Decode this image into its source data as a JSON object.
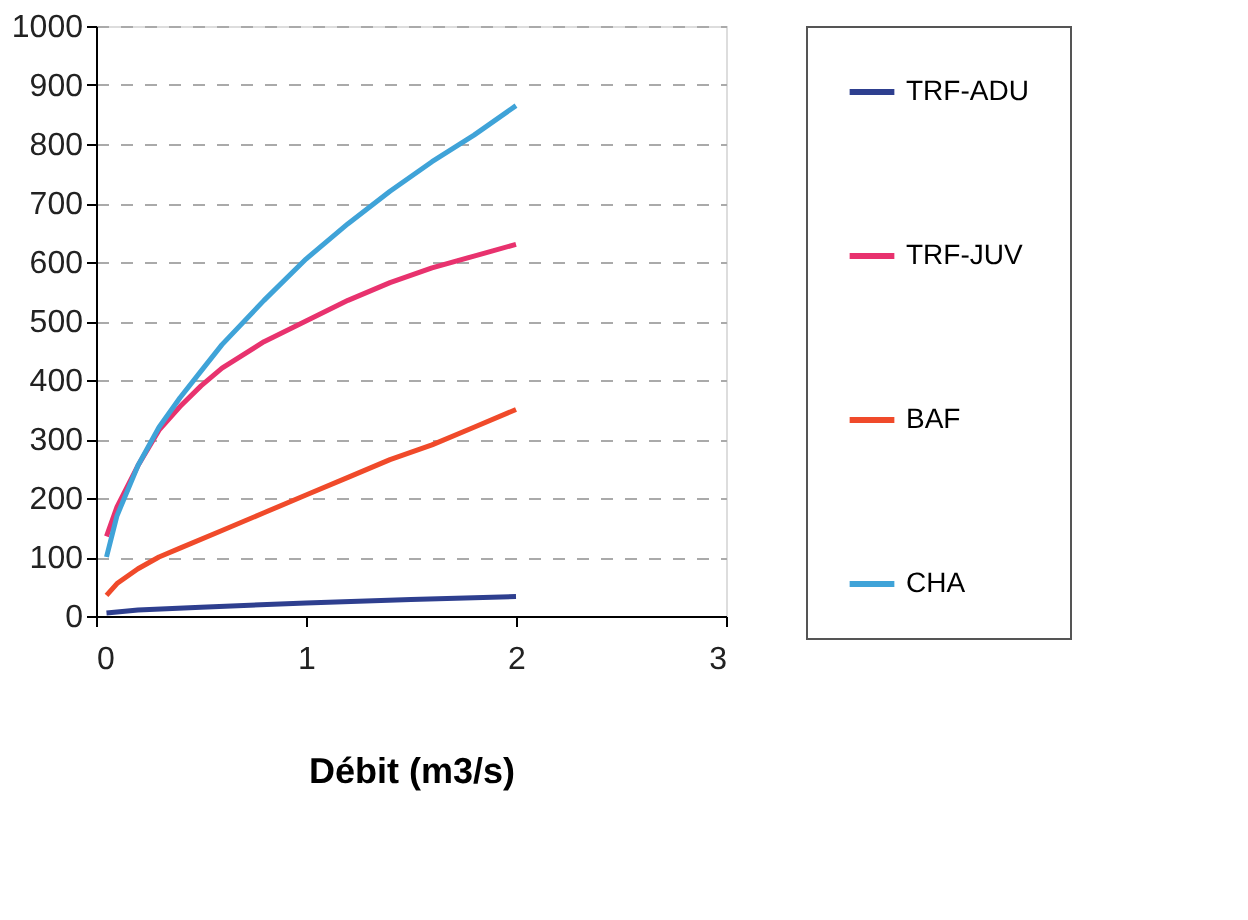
{
  "chart_data": {
    "type": "line",
    "xlabel": "Débit (m3/s)",
    "xlim": [
      0,
      3
    ],
    "xticks": [
      0,
      1,
      2,
      3
    ],
    "ylim": [
      0,
      1000
    ],
    "yticks": [
      0,
      100,
      200,
      300,
      400,
      500,
      600,
      700,
      800,
      900,
      1000
    ],
    "grid": "y",
    "legend": "right",
    "marker": "none",
    "line_style": "solid",
    "series": [
      {
        "name": "TRF-ADU",
        "color": "#2e3f8f",
        "x": [
          0.05,
          0.2,
          0.5,
          1.0,
          1.5,
          2.0
        ],
        "values": [
          5,
          10,
          15,
          22,
          28,
          33
        ]
      },
      {
        "name": "TRF-JUV",
        "color": "#e8326e",
        "x": [
          0.05,
          0.1,
          0.2,
          0.3,
          0.4,
          0.5,
          0.6,
          0.8,
          1.0,
          1.2,
          1.4,
          1.6,
          1.8,
          2.0
        ],
        "values": [
          135,
          185,
          255,
          315,
          355,
          390,
          420,
          465,
          500,
          535,
          565,
          590,
          610,
          630
        ]
      },
      {
        "name": "BAF",
        "color": "#f04a2a",
        "x": [
          0.05,
          0.1,
          0.2,
          0.3,
          0.4,
          0.6,
          0.8,
          1.0,
          1.2,
          1.4,
          1.6,
          1.8,
          2.0
        ],
        "values": [
          35,
          55,
          80,
          100,
          115,
          145,
          175,
          205,
          235,
          265,
          290,
          320,
          350
        ]
      },
      {
        "name": "CHA",
        "color": "#3fa3d8",
        "x": [
          0.05,
          0.1,
          0.2,
          0.3,
          0.4,
          0.5,
          0.6,
          0.8,
          1.0,
          1.2,
          1.4,
          1.6,
          1.8,
          2.0
        ],
        "values": [
          100,
          170,
          255,
          320,
          370,
          415,
          460,
          535,
          605,
          665,
          720,
          770,
          815,
          865
        ]
      }
    ]
  }
}
